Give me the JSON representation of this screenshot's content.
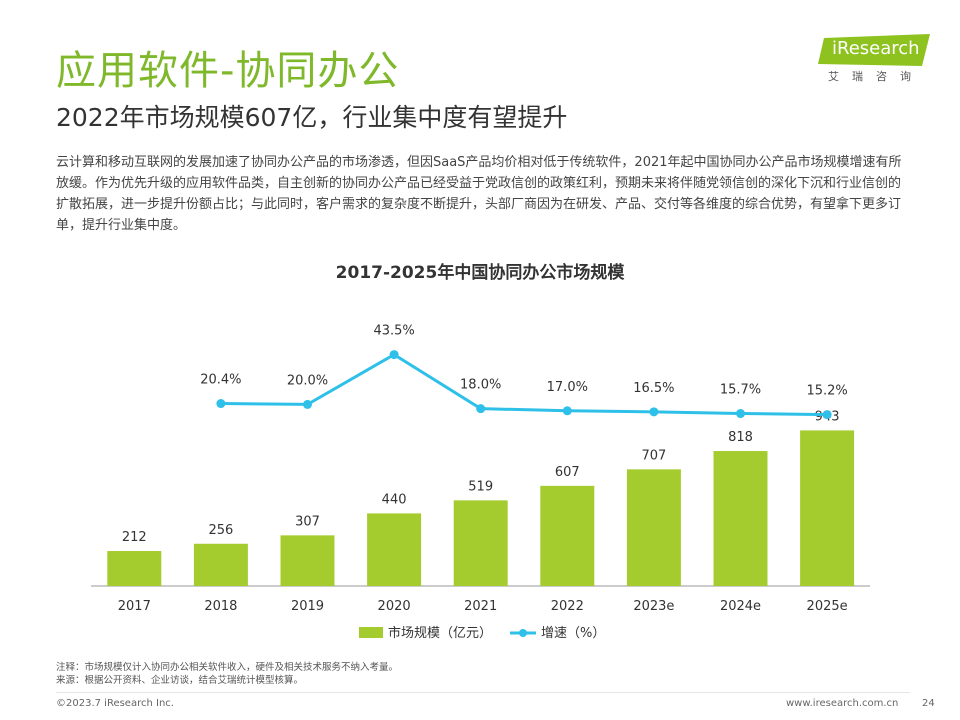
{
  "header": {
    "title": "应用软件-协同办公",
    "subtitle": "2022年市场规模607亿，行业集中度有望提升"
  },
  "logo": {
    "name": "iResearch",
    "cn": "艾瑞咨询",
    "color": "#8dc21f"
  },
  "body_text": "云计算和移动互联网的发展加速了协同办公产品的市场渗透，但因SaaS产品均价相对低于传统软件，2021年起中国协同办公产品市场规模增速有所放缓。作为优先升级的应用软件品类，自主创新的协同办公产品已经受益于党政信创的政策红利，预期未来将伴随党领信创的深化下沉和行业信创的扩散拓展，进一步提升份额占比；与此同时，客户需求的复杂度不断提升，头部厂商因为在研发、产品、交付等各维度的综合优势，有望拿下更多订单，提升行业集中度。",
  "chart_data": {
    "type": "bar",
    "title": "2017-2025年中国协同办公市场规模",
    "categories": [
      "2017",
      "2018",
      "2019",
      "2020",
      "2021",
      "2022",
      "2023e",
      "2024e",
      "2025e"
    ],
    "series": [
      {
        "name": "市场规模（亿元）",
        "type": "bar",
        "values": [
          212,
          256,
          307,
          440,
          519,
          607,
          707,
          818,
          943
        ],
        "labels": [
          "212",
          "256",
          "307",
          "440",
          "519",
          "607",
          "707",
          "818",
          "943"
        ],
        "color": "#a4cc2e"
      },
      {
        "name": "增速（%）",
        "type": "line",
        "values": [
          null,
          20.4,
          20.0,
          43.5,
          18.0,
          17.0,
          16.5,
          15.7,
          15.2
        ],
        "labels": [
          "",
          "20.4%",
          "20.0%",
          "43.5%",
          "18.0%",
          "17.0%",
          "16.5%",
          "15.7%",
          "15.2%"
        ],
        "color": "#2ec0e8"
      }
    ],
    "legend_position": "bottom",
    "grid": false
  },
  "notes": {
    "note": "注释：市场规模仅计入协同办公相关软件收入，硬件及相关技术服务不纳入考量。",
    "source": "来源：根据公开资料、企业访谈，结合艾瑞统计模型核算。"
  },
  "footer": {
    "copyright": "©2023.7 iResearch Inc.",
    "url": "www.iresearch.com.cn",
    "page": "24"
  }
}
